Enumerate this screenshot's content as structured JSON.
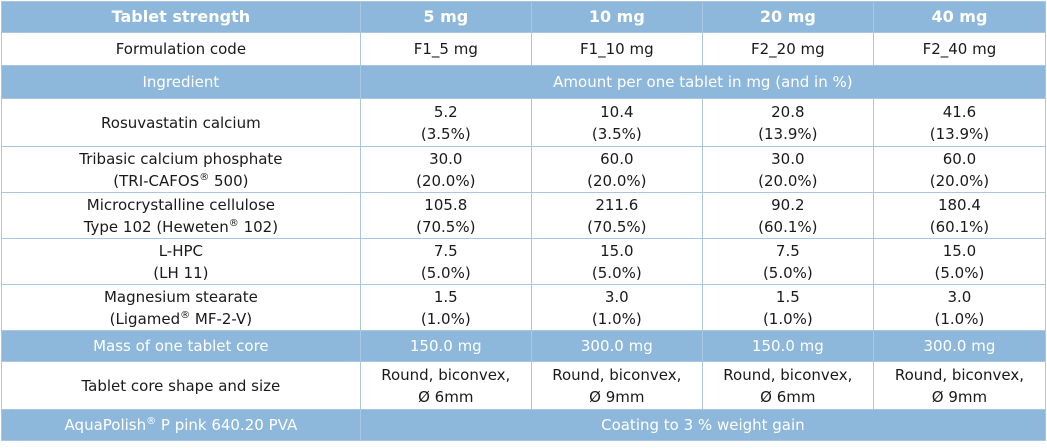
{
  "header": {
    "label": "Tablet strength",
    "strengths": [
      "5 mg",
      "10 mg",
      "20 mg",
      "40 mg"
    ]
  },
  "formulation": {
    "label": "Formulation code",
    "codes": [
      "F1_5 mg",
      "F1_10 mg",
      "F2_20 mg",
      "F2_40 mg"
    ]
  },
  "ingredient_header": {
    "label": "Ingredient",
    "span_label": "Amount per one tablet in mg (and in %)"
  },
  "ingredients": [
    {
      "name": [
        "Rosuvastatin calcium"
      ],
      "values": [
        [
          "5.2",
          "(3.5%)"
        ],
        [
          "10.4",
          "(3.5%)"
        ],
        [
          "20.8",
          "(13.9%)"
        ],
        [
          "41.6",
          "(13.9%)"
        ]
      ]
    },
    {
      "name": [
        "Tribasic calcium phosphate",
        "(TRI-CAFOS",
        "®",
        " 500)"
      ],
      "values": [
        [
          "30.0",
          "(20.0%)"
        ],
        [
          "60.0",
          "(20.0%)"
        ],
        [
          "30.0",
          "(20.0%)"
        ],
        [
          "60.0",
          "(20.0%)"
        ]
      ]
    },
    {
      "name": [
        "Microcrystalline cellulose",
        "Type 102 (Heweten",
        "®",
        " 102)"
      ],
      "values": [
        [
          "105.8",
          "(70.5%)"
        ],
        [
          "211.6",
          "(70.5%)"
        ],
        [
          "90.2",
          "(60.1%)"
        ],
        [
          "180.4",
          "(60.1%)"
        ]
      ]
    },
    {
      "name": [
        "L-HPC",
        "(LH 11)"
      ],
      "values": [
        [
          "7.5",
          "(5.0%)"
        ],
        [
          "15.0",
          "(5.0%)"
        ],
        [
          "7.5",
          "(5.0%)"
        ],
        [
          "15.0",
          "(5.0%)"
        ]
      ]
    },
    {
      "name": [
        "Magnesium stearate",
        "(Ligamed",
        "®",
        " MF-2-V)"
      ],
      "values": [
        [
          "1.5",
          "(1.0%)"
        ],
        [
          "3.0",
          "(1.0%)"
        ],
        [
          "1.5",
          "(1.0%)"
        ],
        [
          "3.0",
          "(1.0%)"
        ]
      ]
    }
  ],
  "mass": {
    "label": "Mass of one tablet core",
    "values": [
      "150.0 mg",
      "300.0 mg",
      "150.0 mg",
      "300.0 mg"
    ]
  },
  "shape": {
    "label": "Tablet core shape and size",
    "values": [
      [
        "Round, biconvex,",
        "Ø 6mm"
      ],
      [
        "Round, biconvex,",
        "Ø 9mm"
      ],
      [
        "Round, biconvex,",
        "Ø 6mm"
      ],
      [
        "Round, biconvex,",
        "Ø 9mm"
      ]
    ]
  },
  "coating": {
    "label_pre": "AquaPolish",
    "label_sup": "®",
    "label_post": " P pink 640.20 PVA",
    "span_label": "Coating to 3 % weight gain"
  }
}
